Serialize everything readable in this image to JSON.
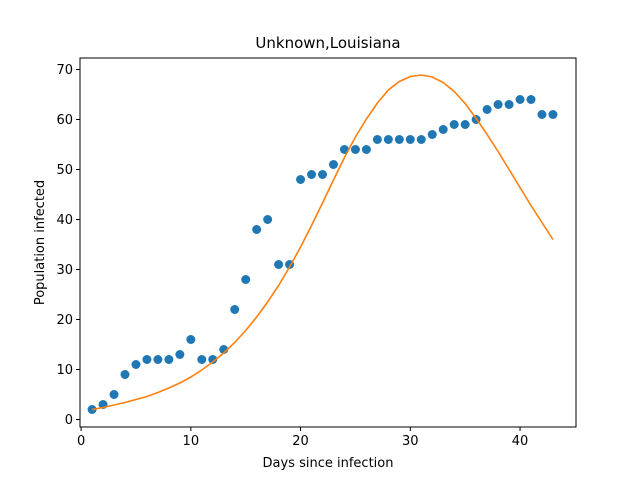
{
  "chart_data": {
    "type": "scatter",
    "title": "Unknown,Louisiana",
    "xlabel": "Days since infection",
    "ylabel": "Population infected",
    "xlim": [
      -0.1,
      45.1
    ],
    "ylim": [
      -1.5,
      72.3
    ],
    "xticks": [
      0,
      10,
      20,
      30,
      40
    ],
    "yticks": [
      0,
      10,
      20,
      30,
      40,
      50,
      60,
      70
    ],
    "grid": false,
    "series": [
      {
        "kind": "scatter",
        "color": "#1f77b4",
        "x": [
          1,
          2,
          3,
          4,
          5,
          6,
          7,
          8,
          9,
          10,
          11,
          12,
          13,
          14,
          15,
          16,
          17,
          18,
          19,
          20,
          21,
          22,
          23,
          24,
          25,
          26,
          27,
          28,
          29,
          30,
          31,
          32,
          33,
          34,
          35,
          36,
          37,
          38,
          39,
          40,
          41,
          42,
          43
        ],
        "y": [
          2,
          3,
          5,
          9,
          11,
          12,
          12,
          12,
          13,
          16,
          12,
          12,
          14,
          22,
          28,
          38,
          40,
          31,
          31,
          48,
          49,
          49,
          51,
          54,
          54,
          54,
          56,
          56,
          56,
          56,
          56,
          57,
          58,
          59,
          59,
          60,
          62,
          63,
          63,
          64,
          64,
          61,
          61
        ]
      },
      {
        "kind": "line",
        "color": "#ff7f0e",
        "x": [
          1,
          2,
          3,
          4,
          5,
          6,
          7,
          8,
          9,
          10,
          11,
          12,
          13,
          14,
          15,
          16,
          17,
          18,
          19,
          20,
          21,
          22,
          23,
          24,
          25,
          26,
          27,
          28,
          29,
          30,
          31,
          32,
          33,
          34,
          35,
          36,
          37,
          38,
          39,
          40,
          41,
          42,
          43
        ],
        "y": [
          2.0,
          2.4,
          2.9,
          3.4,
          4.0,
          4.6,
          5.4,
          6.3,
          7.3,
          8.5,
          9.9,
          11.5,
          13.3,
          15.4,
          17.8,
          20.5,
          23.5,
          26.8,
          30.5,
          34.5,
          38.8,
          43.3,
          47.9,
          52.4,
          56.5,
          60.1,
          63.3,
          65.9,
          67.6,
          68.6,
          68.9,
          68.5,
          67.4,
          65.6,
          63.2,
          60.2,
          57.0,
          53.6,
          50.0,
          46.4,
          42.8,
          39.4,
          36.0
        ]
      }
    ]
  }
}
